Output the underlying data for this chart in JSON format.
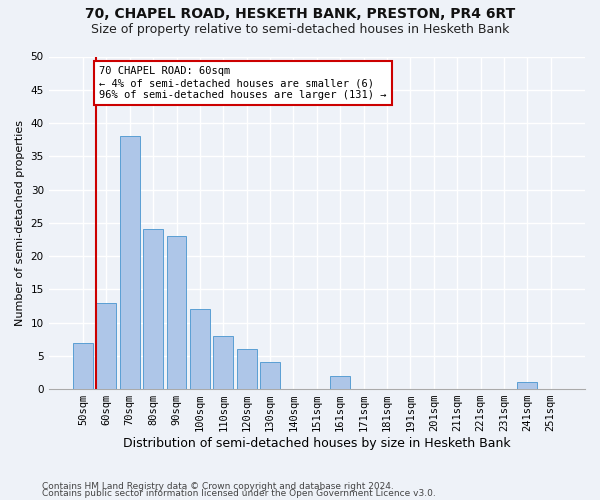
{
  "title1": "70, CHAPEL ROAD, HESKETH BANK, PRESTON, PR4 6RT",
  "title2": "Size of property relative to semi-detached houses in Hesketh Bank",
  "xlabel": "Distribution of semi-detached houses by size in Hesketh Bank",
  "ylabel": "Number of semi-detached properties",
  "bar_labels": [
    "50sqm",
    "60sqm",
    "70sqm",
    "80sqm",
    "90sqm",
    "100sqm",
    "110sqm",
    "120sqm",
    "130sqm",
    "140sqm",
    "151sqm",
    "161sqm",
    "171sqm",
    "181sqm",
    "191sqm",
    "201sqm",
    "211sqm",
    "221sqm",
    "231sqm",
    "241sqm",
    "251sqm"
  ],
  "bar_values": [
    7,
    13,
    38,
    24,
    23,
    12,
    8,
    6,
    4,
    0,
    0,
    2,
    0,
    0,
    0,
    0,
    0,
    0,
    0,
    1,
    0
  ],
  "bar_color": "#aec6e8",
  "bar_edge_color": "#5a9fd4",
  "highlight_index": 1,
  "highlight_line_color": "#cc0000",
  "annotation_text": "70 CHAPEL ROAD: 60sqm\n← 4% of semi-detached houses are smaller (6)\n96% of semi-detached houses are larger (131) →",
  "annotation_box_color": "#ffffff",
  "annotation_box_edge": "#cc0000",
  "ylim": [
    0,
    50
  ],
  "yticks": [
    0,
    5,
    10,
    15,
    20,
    25,
    30,
    35,
    40,
    45,
    50
  ],
  "footer1": "Contains HM Land Registry data © Crown copyright and database right 2024.",
  "footer2": "Contains public sector information licensed under the Open Government Licence v3.0.",
  "bg_color": "#eef2f8",
  "grid_color": "#ffffff",
  "title1_fontsize": 10,
  "title2_fontsize": 9,
  "xlabel_fontsize": 9,
  "ylabel_fontsize": 8,
  "tick_fontsize": 7.5,
  "footer_fontsize": 6.5
}
